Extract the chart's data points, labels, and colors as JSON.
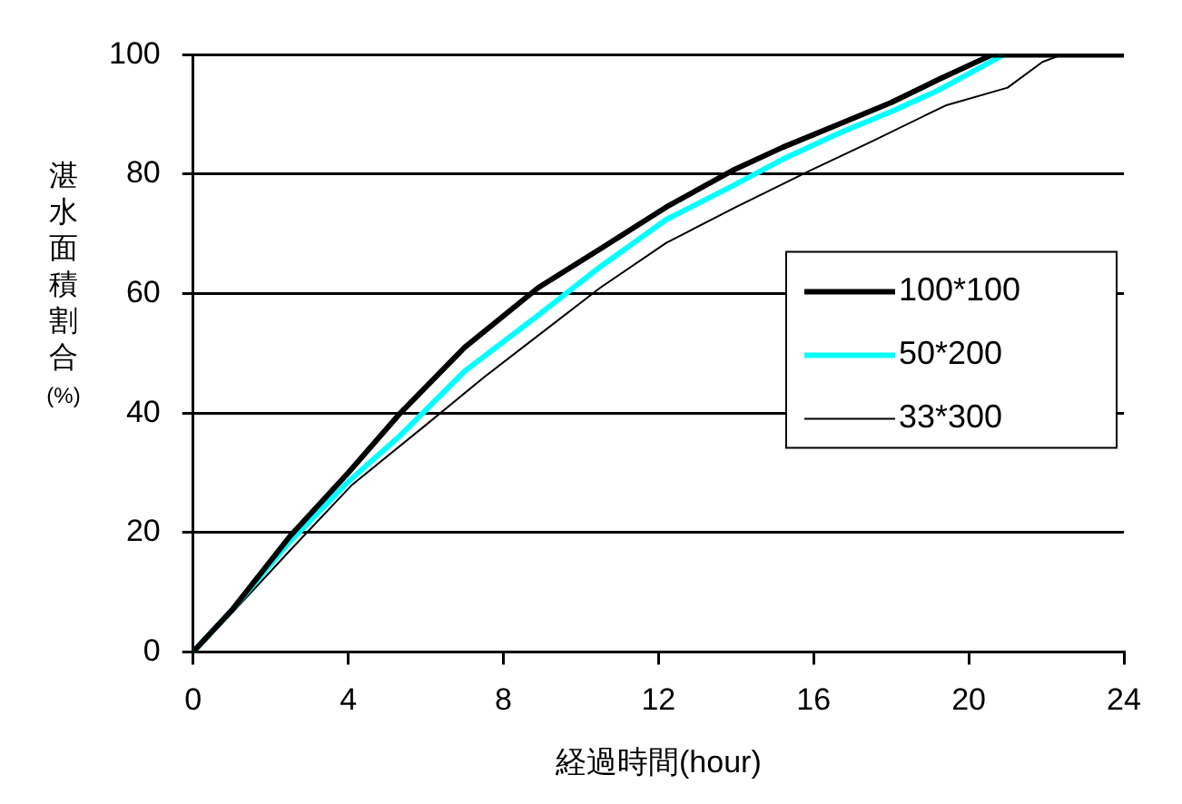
{
  "chart_data": {
    "type": "line",
    "xlabel": "経過時間(hour)",
    "ylabel": "湛水面積割合(%)",
    "xlim": [
      0,
      24
    ],
    "xticks": [
      0,
      4,
      8,
      12,
      16,
      20,
      24
    ],
    "ylim": [
      0,
      100
    ],
    "yticks": [
      0,
      20,
      40,
      60,
      80,
      100
    ],
    "grid": "y",
    "legend": "right",
    "marker": "none",
    "line_style": "solid",
    "series": [
      {
        "name": "100*100",
        "color": "#000000",
        "x": [
          0,
          1,
          2.5,
          4,
          5.3,
          7,
          8.9,
          10.5,
          12.2,
          13.9,
          15.2,
          16.7,
          18,
          19.2,
          20.6,
          24
        ],
        "values": [
          0,
          7,
          19.4,
          30,
          39.7,
          51,
          61,
          67.5,
          74.5,
          80.6,
          84.5,
          88.5,
          92,
          95.8,
          100,
          100
        ]
      },
      {
        "name": "50*200",
        "color": "#00ffff",
        "x": [
          0,
          1,
          2.5,
          4,
          5.3,
          7,
          8.9,
          10.5,
          12.2,
          13.9,
          15.2,
          16.7,
          18,
          19.2,
          20.9
        ],
        "values": [
          0,
          7,
          18.5,
          28.5,
          36,
          47,
          56.4,
          64.5,
          72.4,
          78,
          82.5,
          87,
          90.5,
          94,
          100
        ]
      },
      {
        "name": "33*300",
        "color": "#000000",
        "x": [
          0,
          1,
          2.5,
          4.1,
          6,
          7.5,
          8.9,
          10.5,
          12.2,
          14,
          15.9,
          17.5,
          19.4,
          21,
          21.9,
          22.4,
          24
        ],
        "values": [
          0,
          6.5,
          17,
          28,
          38,
          46,
          53,
          61,
          68.5,
          74.5,
          80.6,
          85.5,
          91.5,
          94.5,
          98.8,
          100,
          100
        ]
      }
    ]
  }
}
